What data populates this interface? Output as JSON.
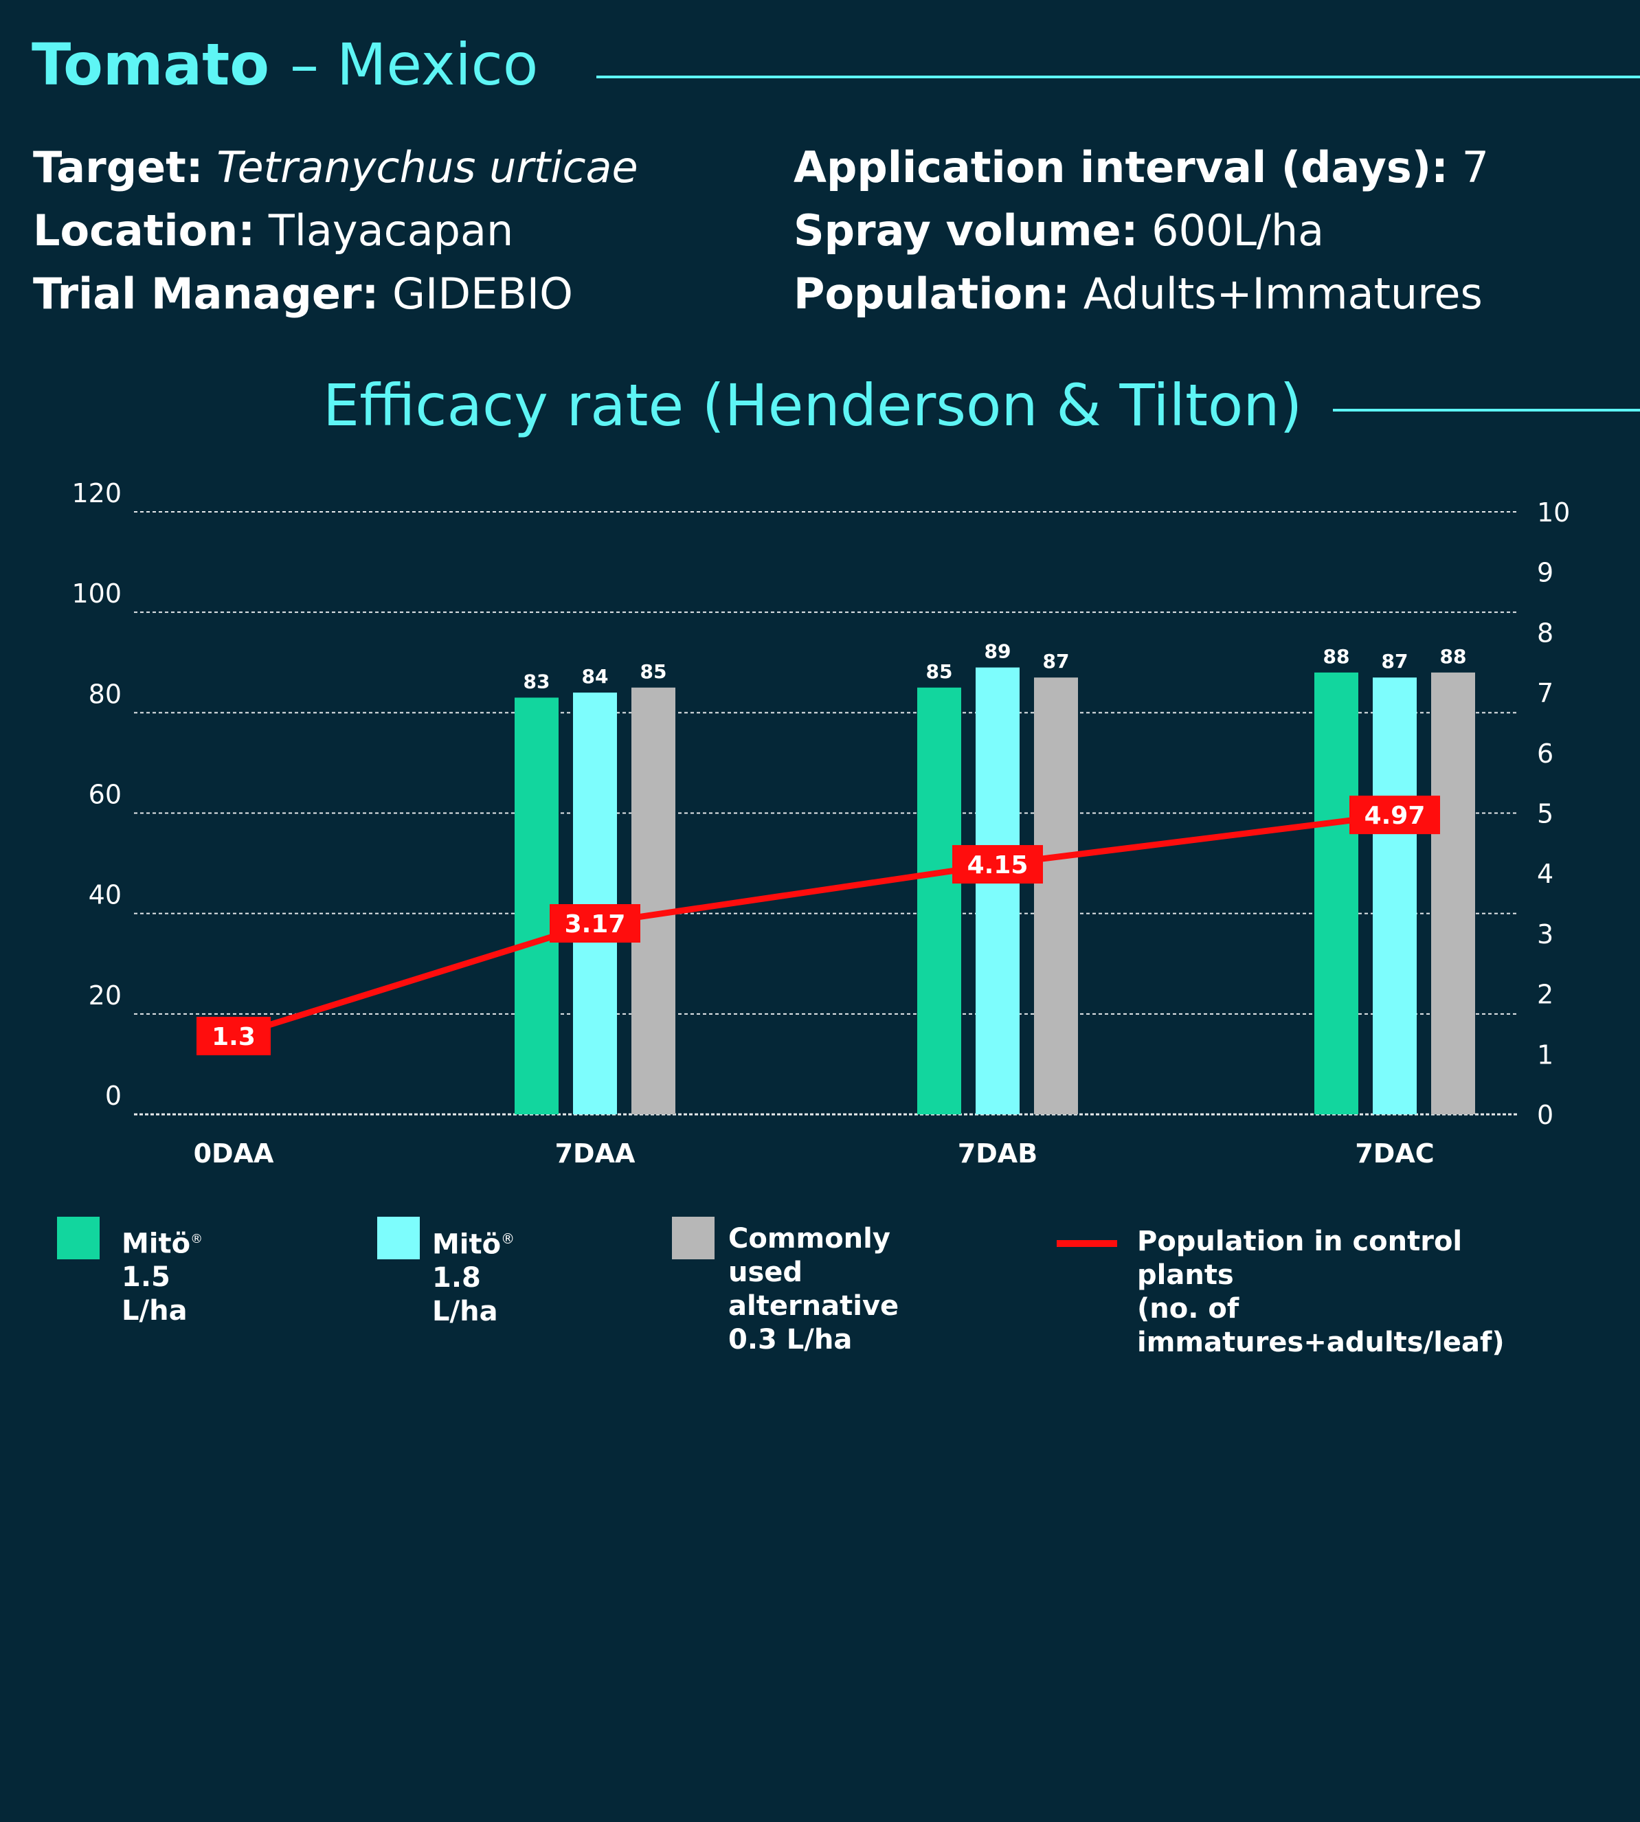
{
  "header": {
    "crop": "Tomato",
    "separator": "–",
    "country": "Mexico"
  },
  "info": {
    "target_label": "Target:",
    "target_value": "Tetranychus urticae",
    "location_label": "Location:",
    "location_value": "Tlayacapan",
    "manager_label": "Trial Manager:",
    "manager_value": "GIDEBIO",
    "interval_label": "Application interval (days):",
    "interval_value": "7",
    "volume_label": "Spray volume:",
    "volume_value": "600L/ha",
    "population_label": "Population:",
    "population_value": "Adults+Immatures"
  },
  "chart_title": "Efficacy rate (Henderson & Tilton)",
  "legend": {
    "mito15_name": "Mitö",
    "mito15_rate": " 1.5 L/ha",
    "mito18_name": "Mitö",
    "mito18_rate": " 1.8 L/ha",
    "registered_mark": "®",
    "alternative": "Commonly used\nalternative\n0.3 L/ha",
    "population": "Population in control plants\n(no. of immatures+adults/leaf)"
  },
  "colors": {
    "background": "#052737",
    "accent": "#5ef5f5",
    "mito15": "#12d69e",
    "mito18": "#7dfdfd",
    "alternative": "#b7b7b7",
    "population_line": "#ff0d0d"
  },
  "chart_data": {
    "type": "bar",
    "categories": [
      "0DAA",
      "7DAA",
      "7DAB",
      "7DAC"
    ],
    "series": [
      {
        "name": "Mitö® 1.5 L/ha",
        "values": [
          null,
          83,
          85,
          88
        ],
        "labels": [
          "",
          "83",
          "85",
          "88"
        ],
        "color": "#12d69e"
      },
      {
        "name": "Mitö® 1.8 L/ha",
        "values": [
          null,
          84,
          89,
          87
        ],
        "labels": [
          "",
          "84",
          "89",
          "87"
        ],
        "color": "#7dfdfd"
      },
      {
        "name": "Commonly used alternative 0.3 L/ha",
        "values": [
          null,
          85,
          87,
          88
        ],
        "labels": [
          "",
          "85",
          "87",
          "88"
        ],
        "color": "#b7b7b7"
      }
    ],
    "line_series": {
      "name": "Population in control plants (no. of immatures+adults/leaf)",
      "axis": "right",
      "values": [
        1.3,
        3.17,
        4.15,
        4.97
      ],
      "labels": [
        "1.3",
        "3.17",
        "4.15",
        "4.97"
      ],
      "color": "#ff0d0d"
    },
    "y_left": {
      "min": 0,
      "max": 120,
      "ticks": [
        "0",
        "20",
        "40",
        "60",
        "80",
        "100",
        "120"
      ]
    },
    "y_right": {
      "min": 0,
      "max": 10,
      "ticks": [
        "0",
        "1",
        "2",
        "3",
        "4",
        "5",
        "6",
        "7",
        "8",
        "9",
        "10"
      ]
    },
    "grid": true,
    "legend_position": "bottom"
  }
}
